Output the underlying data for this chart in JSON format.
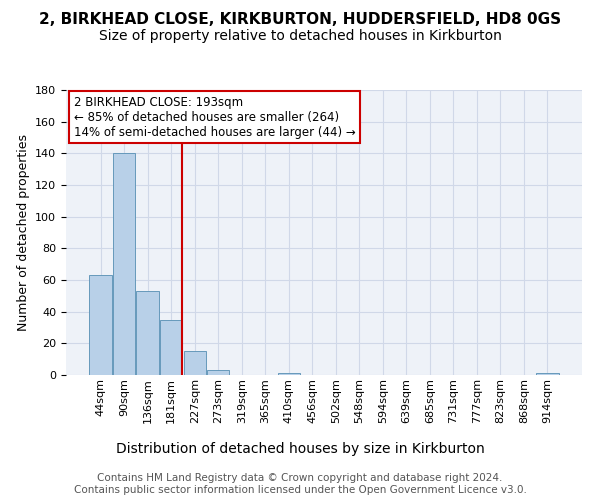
{
  "title": "2, BIRKHEAD CLOSE, KIRKBURTON, HUDDERSFIELD, HD8 0GS",
  "subtitle": "Size of property relative to detached houses in Kirkburton",
  "xlabel": "Distribution of detached houses by size in Kirkburton",
  "ylabel": "Number of detached properties",
  "bar_values": [
    63,
    140,
    53,
    35,
    15,
    3,
    0,
    0,
    1,
    0,
    0,
    0,
    0,
    0,
    0,
    0,
    0,
    0,
    0,
    1
  ],
  "bar_labels": [
    "44sqm",
    "90sqm",
    "136sqm",
    "181sqm",
    "227sqm",
    "273sqm",
    "319sqm",
    "365sqm",
    "410sqm",
    "456sqm",
    "502sqm",
    "548sqm",
    "594sqm",
    "639sqm",
    "685sqm",
    "731sqm",
    "777sqm",
    "823sqm",
    "868sqm",
    "914sqm"
  ],
  "bar_color": "#b8d0e8",
  "bar_edge_color": "#6699bb",
  "grid_color": "#d0d8e8",
  "background_color": "#eef2f8",
  "vline_x": 3.45,
  "vline_color": "#cc0000",
  "annotation_text": "2 BIRKHEAD CLOSE: 193sqm\n← 85% of detached houses are smaller (264)\n14% of semi-detached houses are larger (44) →",
  "annotation_box_color": "#cc0000",
  "ylim": [
    0,
    180
  ],
  "yticks": [
    0,
    20,
    40,
    60,
    80,
    100,
    120,
    140,
    160,
    180
  ],
  "footer_text": "Contains HM Land Registry data © Crown copyright and database right 2024.\nContains public sector information licensed under the Open Government Licence v3.0.",
  "title_fontsize": 11,
  "subtitle_fontsize": 10,
  "xlabel_fontsize": 10,
  "ylabel_fontsize": 9,
  "tick_fontsize": 8,
  "annotation_fontsize": 8.5,
  "footer_fontsize": 7.5
}
